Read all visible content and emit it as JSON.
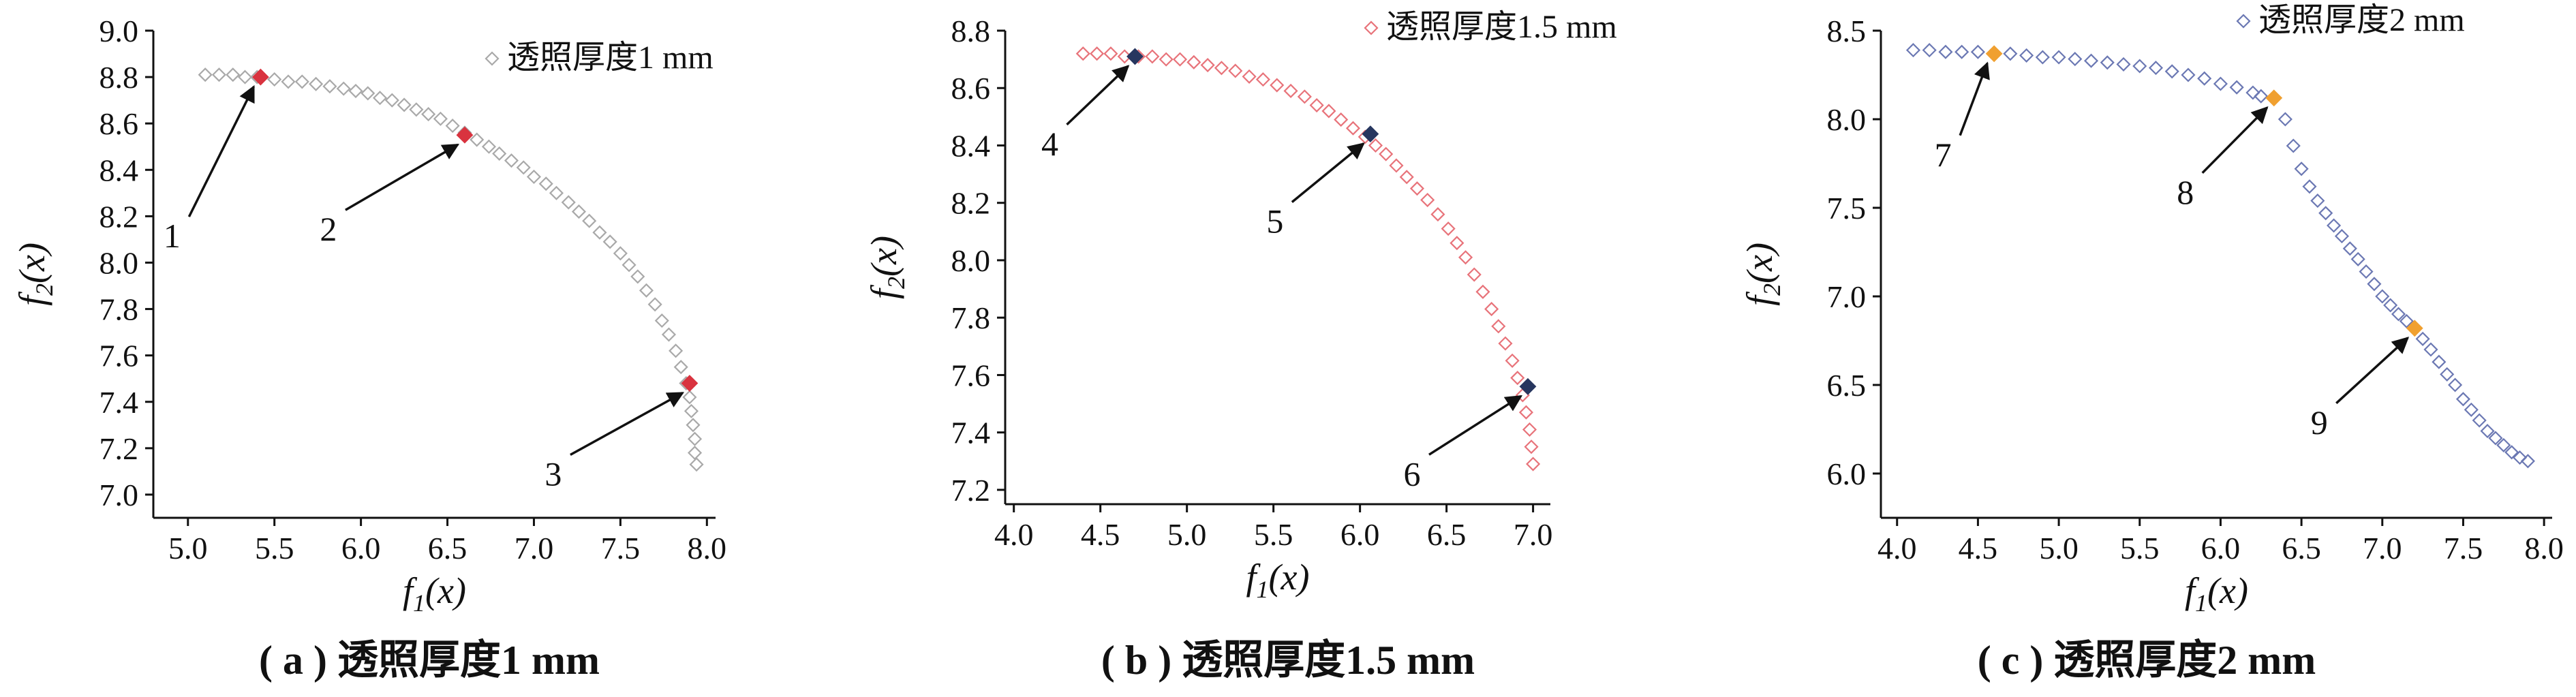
{
  "chart_data": [
    {
      "type": "scatter",
      "panel_label": "( a )",
      "caption": "透照厚度1 mm",
      "legend": "透照厚度1 mm",
      "xlabel": {
        "base": "f",
        "sub": "1",
        "arg": "(x)"
      },
      "ylabel": {
        "base": "f",
        "sub": "2",
        "arg": "(x)"
      },
      "xlim": [
        4.8,
        8.05
      ],
      "ylim": [
        6.9,
        9.0
      ],
      "xticks": [
        "5.0",
        "5.5",
        "6.0",
        "6.5",
        "7.0",
        "7.5",
        "8.0"
      ],
      "yticks": [
        "7.0",
        "7.2",
        "7.4",
        "7.6",
        "7.8",
        "8.0",
        "8.2",
        "8.4",
        "8.6",
        "8.8",
        "9.0"
      ],
      "grid": false,
      "legend_position": "top-right",
      "marker_color": "#a9a9a9",
      "highlight_color": "#d9333f",
      "series": [
        {
          "x": [
            5.1,
            5.18,
            5.26,
            5.33,
            5.4,
            5.5,
            5.58,
            5.66,
            5.74,
            5.82,
            5.9,
            5.97,
            6.04,
            6.11,
            6.18,
            6.25,
            6.32,
            6.39,
            6.46,
            6.53,
            6.6,
            6.67,
            6.74,
            6.8,
            6.87,
            6.94,
            7.0,
            7.07,
            7.13,
            7.2,
            7.26,
            7.32,
            7.38,
            7.44,
            7.5,
            7.55,
            7.6,
            7.65,
            7.7,
            7.74,
            7.78,
            7.82,
            7.85,
            7.88,
            7.9,
            7.91,
            7.92,
            7.93,
            7.93,
            7.94
          ],
          "y": [
            8.81,
            8.81,
            8.81,
            8.8,
            8.8,
            8.79,
            8.78,
            8.78,
            8.77,
            8.76,
            8.75,
            8.74,
            8.73,
            8.71,
            8.7,
            8.68,
            8.66,
            8.64,
            8.62,
            8.59,
            8.56,
            8.53,
            8.5,
            8.47,
            8.44,
            8.41,
            8.37,
            8.34,
            8.3,
            8.26,
            8.22,
            8.18,
            8.13,
            8.09,
            8.04,
            7.99,
            7.94,
            7.88,
            7.82,
            7.75,
            7.69,
            7.62,
            7.55,
            7.48,
            7.42,
            7.36,
            7.3,
            7.24,
            7.18,
            7.13
          ]
        }
      ],
      "highlights": [
        {
          "label": "1",
          "x": 5.42,
          "y": 8.8
        },
        {
          "label": "2",
          "x": 6.6,
          "y": 8.55
        },
        {
          "label": "3",
          "x": 7.9,
          "y": 7.48
        }
      ]
    },
    {
      "type": "scatter",
      "panel_label": "( b )",
      "caption": "透照厚度1.5 mm",
      "legend": "透照厚度1.5 mm",
      "xlabel": {
        "base": "f",
        "sub": "1",
        "arg": "(x)"
      },
      "ylabel": {
        "base": "f",
        "sub": "2",
        "arg": "(x)"
      },
      "xlim": [
        3.95,
        7.1
      ],
      "ylim": [
        7.15,
        8.8
      ],
      "xticks": [
        "4.0",
        "4.5",
        "5.0",
        "5.5",
        "6.0",
        "6.5",
        "7.0"
      ],
      "yticks": [
        "7.2",
        "7.4",
        "7.6",
        "7.8",
        "8.0",
        "8.2",
        "8.4",
        "8.6",
        "8.8"
      ],
      "grid": false,
      "legend_position": "top-right",
      "marker_color": "#e8737a",
      "highlight_color": "#27365f",
      "series": [
        {
          "x": [
            4.4,
            4.48,
            4.56,
            4.64,
            4.72,
            4.8,
            4.88,
            4.96,
            5.04,
            5.12,
            5.2,
            5.28,
            5.36,
            5.44,
            5.52,
            5.6,
            5.68,
            5.75,
            5.82,
            5.89,
            5.96,
            6.03,
            6.09,
            6.15,
            6.21,
            6.27,
            6.33,
            6.39,
            6.45,
            6.51,
            6.56,
            6.61,
            6.66,
            6.71,
            6.76,
            6.8,
            6.84,
            6.88,
            6.91,
            6.94,
            6.96,
            6.98,
            6.99,
            7.0
          ],
          "y": [
            8.72,
            8.72,
            8.72,
            8.71,
            8.71,
            8.71,
            8.7,
            8.7,
            8.69,
            8.68,
            8.67,
            8.66,
            8.64,
            8.63,
            8.61,
            8.59,
            8.57,
            8.54,
            8.52,
            8.49,
            8.46,
            8.43,
            8.4,
            8.37,
            8.33,
            8.29,
            8.25,
            8.21,
            8.16,
            8.11,
            8.06,
            8.01,
            7.95,
            7.89,
            7.83,
            7.77,
            7.71,
            7.65,
            7.59,
            7.53,
            7.47,
            7.41,
            7.35,
            7.29
          ]
        }
      ],
      "highlights": [
        {
          "label": "4",
          "x": 4.7,
          "y": 8.71
        },
        {
          "label": "5",
          "x": 6.06,
          "y": 8.44
        },
        {
          "label": "6",
          "x": 6.97,
          "y": 7.56
        }
      ]
    },
    {
      "type": "scatter",
      "panel_label": "( c )",
      "caption": "透照厚度2 mm",
      "legend": "透照厚度2 mm",
      "xlabel": {
        "base": "f",
        "sub": "1",
        "arg": "(x)"
      },
      "ylabel": {
        "base": "f",
        "sub": "2",
        "arg": "(x)"
      },
      "xlim": [
        3.9,
        8.05
      ],
      "ylim": [
        5.75,
        8.5
      ],
      "xticks": [
        "4.0",
        "4.5",
        "5.0",
        "5.5",
        "6.0",
        "6.5",
        "7.0",
        "7.5",
        "8.0"
      ],
      "yticks": [
        "6.0",
        "6.5",
        "7.0",
        "7.5",
        "8.0",
        "8.5"
      ],
      "grid": false,
      "legend_position": "top-right",
      "marker_color": "#6b78b3",
      "highlight_color": "#f0a030",
      "series": [
        {
          "x": [
            4.1,
            4.2,
            4.3,
            4.4,
            4.5,
            4.7,
            4.8,
            4.9,
            5.0,
            5.1,
            5.2,
            5.3,
            5.4,
            5.5,
            5.6,
            5.7,
            5.8,
            5.9,
            6.0,
            6.1,
            6.2,
            6.25,
            6.4,
            6.45,
            6.5,
            6.55,
            6.6,
            6.65,
            6.7,
            6.75,
            6.8,
            6.85,
            6.9,
            6.95,
            7.0,
            7.05,
            7.1,
            7.15,
            7.25,
            7.3,
            7.35,
            7.4,
            7.45,
            7.5,
            7.55,
            7.6,
            7.65,
            7.7,
            7.75,
            7.8,
            7.85,
            7.9
          ],
          "y": [
            8.39,
            8.39,
            8.38,
            8.38,
            8.38,
            8.37,
            8.36,
            8.35,
            8.35,
            8.34,
            8.33,
            8.32,
            8.31,
            8.3,
            8.29,
            8.27,
            8.25,
            8.23,
            8.2,
            8.18,
            8.15,
            8.13,
            8.0,
            7.85,
            7.72,
            7.62,
            7.54,
            7.47,
            7.4,
            7.34,
            7.27,
            7.21,
            7.14,
            7.07,
            7.0,
            6.95,
            6.9,
            6.86,
            6.76,
            6.7,
            6.63,
            6.56,
            6.5,
            6.42,
            6.36,
            6.3,
            6.24,
            6.2,
            6.16,
            6.12,
            6.09,
            6.07
          ]
        }
      ],
      "highlights": [
        {
          "label": "7",
          "x": 4.6,
          "y": 8.37
        },
        {
          "label": "8",
          "x": 6.33,
          "y": 8.12
        },
        {
          "label": "9",
          "x": 7.2,
          "y": 6.82
        }
      ]
    }
  ]
}
